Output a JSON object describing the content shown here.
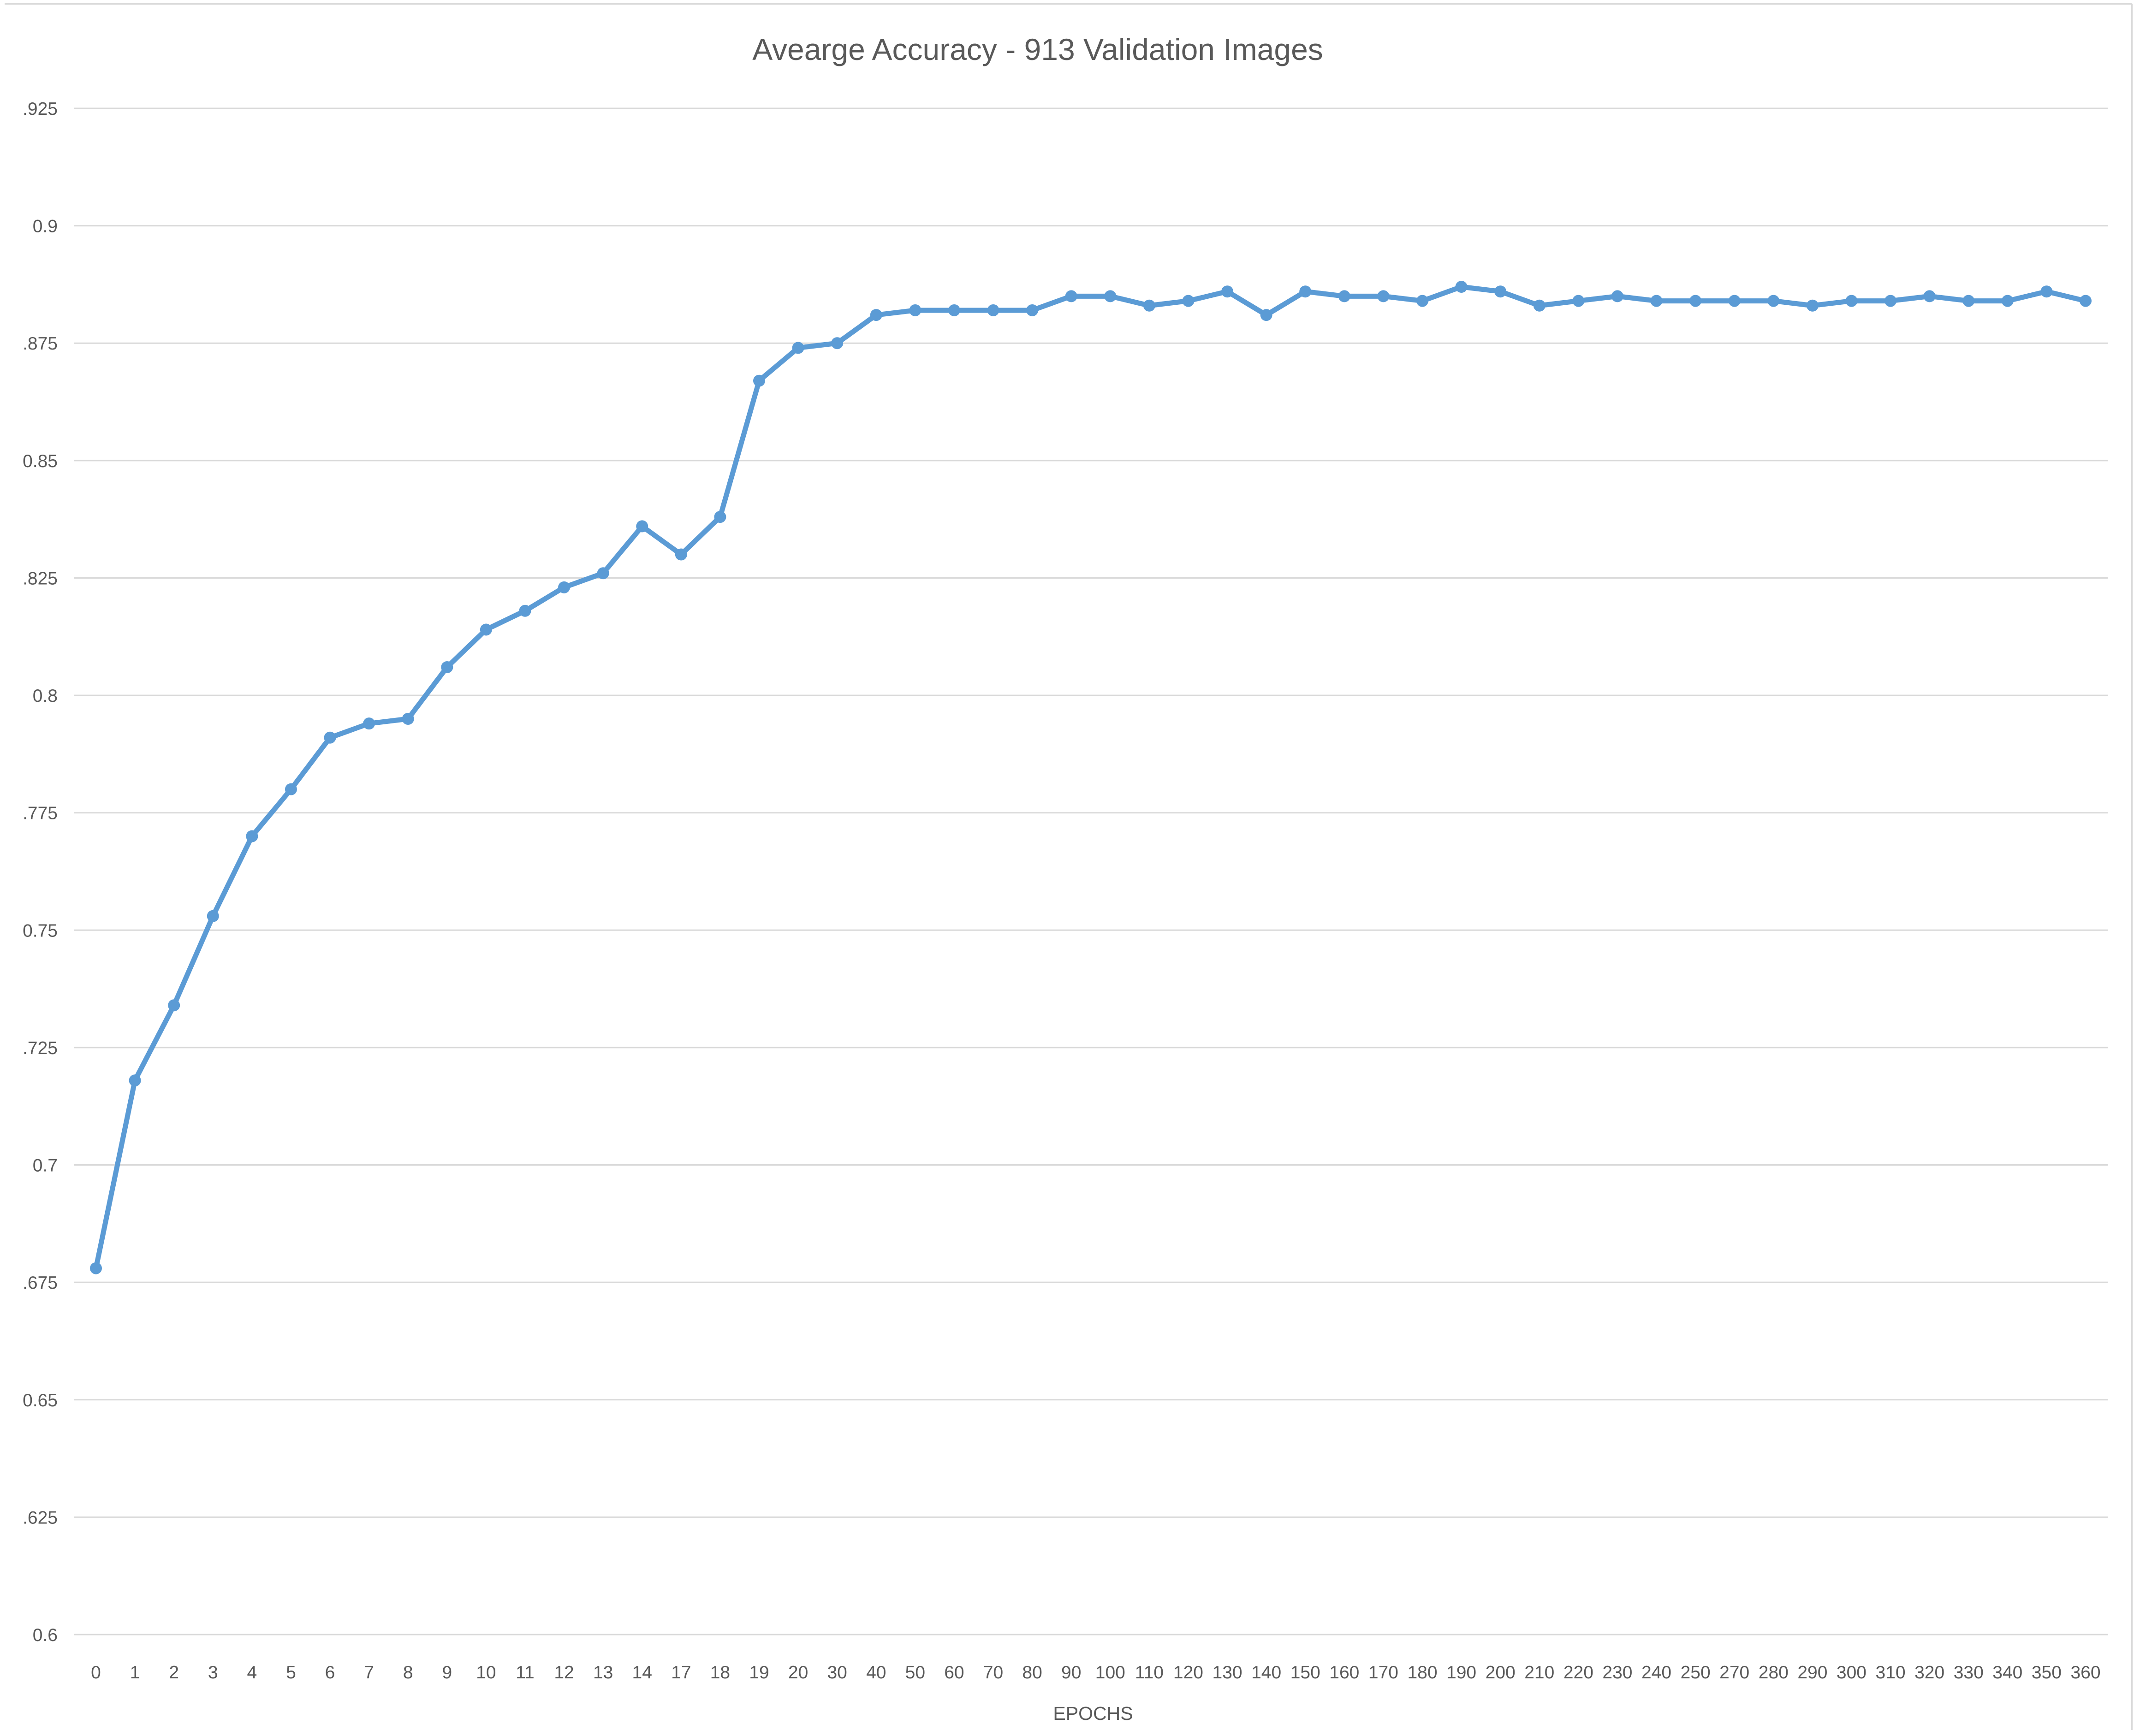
{
  "chart_data": {
    "type": "line",
    "title": "Avearge Accuracy - 913 Validation Images",
    "xlabel": "EPOCHS",
    "ylabel": "",
    "ylim": [
      0.6,
      0.925
    ],
    "yticks": [
      "0.6",
      ".625",
      "0.65",
      ".675",
      "0.7",
      ".725",
      "0.75",
      ".775",
      "0.8",
      ".825",
      "0.85",
      ".875",
      "0.9",
      ".925"
    ],
    "grid": true,
    "legend": "none",
    "line_color": "#5b9bd5",
    "categories": [
      "0",
      "1",
      "2",
      "3",
      "4",
      "5",
      "6",
      "7",
      "8",
      "9",
      "10",
      "11",
      "12",
      "13",
      "14",
      "17",
      "18",
      "19",
      "20",
      "30",
      "40",
      "50",
      "60",
      "70",
      "80",
      "90",
      "100",
      "110",
      "120",
      "130",
      "140",
      "150",
      "160",
      "170",
      "180",
      "190",
      "200",
      "210",
      "220",
      "230",
      "240",
      "250",
      "270",
      "280",
      "290",
      "300",
      "310",
      "320",
      "330",
      "340",
      "350",
      "360"
    ],
    "series": [
      {
        "name": "",
        "values": [
          0.678,
          0.718,
          0.734,
          0.753,
          0.77,
          0.78,
          0.791,
          0.794,
          0.795,
          0.806,
          0.814,
          0.818,
          0.823,
          0.826,
          0.836,
          0.83,
          0.838,
          0.867,
          0.874,
          0.875,
          0.881,
          0.882,
          0.882,
          0.882,
          0.882,
          0.885,
          0.885,
          0.883,
          0.884,
          0.886,
          0.881,
          0.886,
          0.885,
          0.885,
          0.884,
          0.887,
          0.886,
          0.883,
          0.884,
          0.885,
          0.884,
          0.884,
          0.884,
          0.884,
          0.883,
          0.884,
          0.884,
          0.885,
          0.884,
          0.884,
          0.886,
          0.884
        ]
      }
    ]
  }
}
